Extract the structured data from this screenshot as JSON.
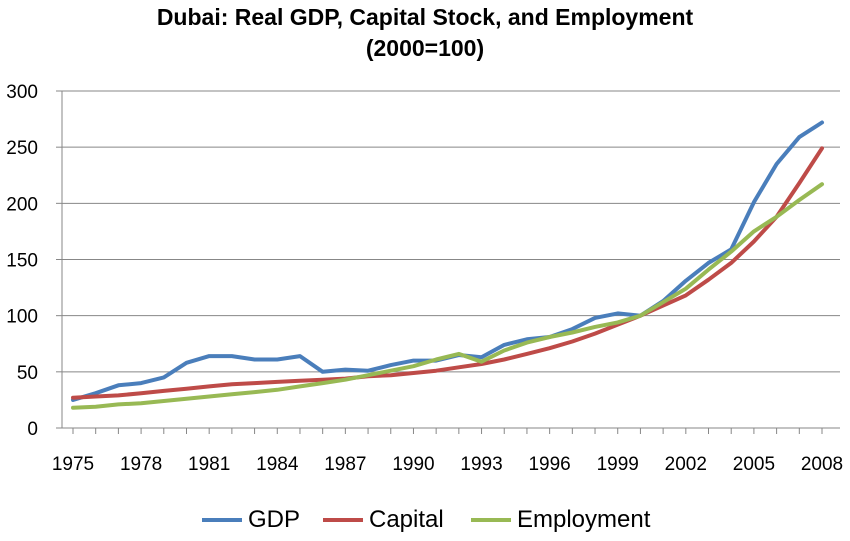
{
  "chart_data": {
    "type": "line",
    "title": "Dubai: Real GDP, Capital Stock, and Employment",
    "subtitle": "(2000=100)",
    "xlabel": "",
    "ylabel": "",
    "ylim": [
      0,
      300
    ],
    "yticks": [
      "0",
      "50",
      "100",
      "150",
      "200",
      "250",
      "300"
    ],
    "xlim": [
      1975,
      2008
    ],
    "xticks": [
      "1975",
      "1978",
      "1981",
      "1984",
      "1987",
      "1990",
      "1993",
      "1996",
      "1999",
      "2002",
      "2005",
      "2008"
    ],
    "grid": "horizontal",
    "legend_position": "bottom",
    "x": [
      1975,
      1976,
      1977,
      1978,
      1979,
      1980,
      1981,
      1982,
      1983,
      1984,
      1985,
      1986,
      1987,
      1988,
      1989,
      1990,
      1991,
      1992,
      1993,
      1994,
      1995,
      1996,
      1997,
      1998,
      1999,
      2000,
      2001,
      2002,
      2003,
      2004,
      2005,
      2006,
      2007,
      2008
    ],
    "series": [
      {
        "name": "GDP",
        "color": "#4a7ebb",
        "values": [
          25,
          31,
          38,
          40,
          45,
          58,
          64,
          64,
          61,
          61,
          64,
          50,
          52,
          51,
          56,
          60,
          60,
          65,
          63,
          74,
          79,
          81,
          88,
          98,
          102,
          100,
          113,
          131,
          147,
          159,
          201,
          235,
          259,
          272
        ]
      },
      {
        "name": "Capital",
        "color": "#be4b48",
        "values": [
          27,
          28,
          29,
          31,
          33,
          35,
          37,
          39,
          40,
          41,
          42,
          43,
          44,
          46,
          47,
          49,
          51,
          54,
          57,
          61,
          66,
          71,
          77,
          84,
          92,
          100,
          109,
          118,
          132,
          147,
          166,
          188,
          218,
          249
        ]
      },
      {
        "name": "Employment",
        "color": "#98b954",
        "values": [
          18,
          19,
          21,
          22,
          24,
          26,
          28,
          30,
          32,
          34,
          37,
          40,
          43,
          47,
          51,
          55,
          61,
          66,
          59,
          69,
          76,
          81,
          85,
          90,
          94,
          100,
          112,
          124,
          141,
          157,
          175,
          188,
          203,
          217
        ]
      }
    ]
  }
}
